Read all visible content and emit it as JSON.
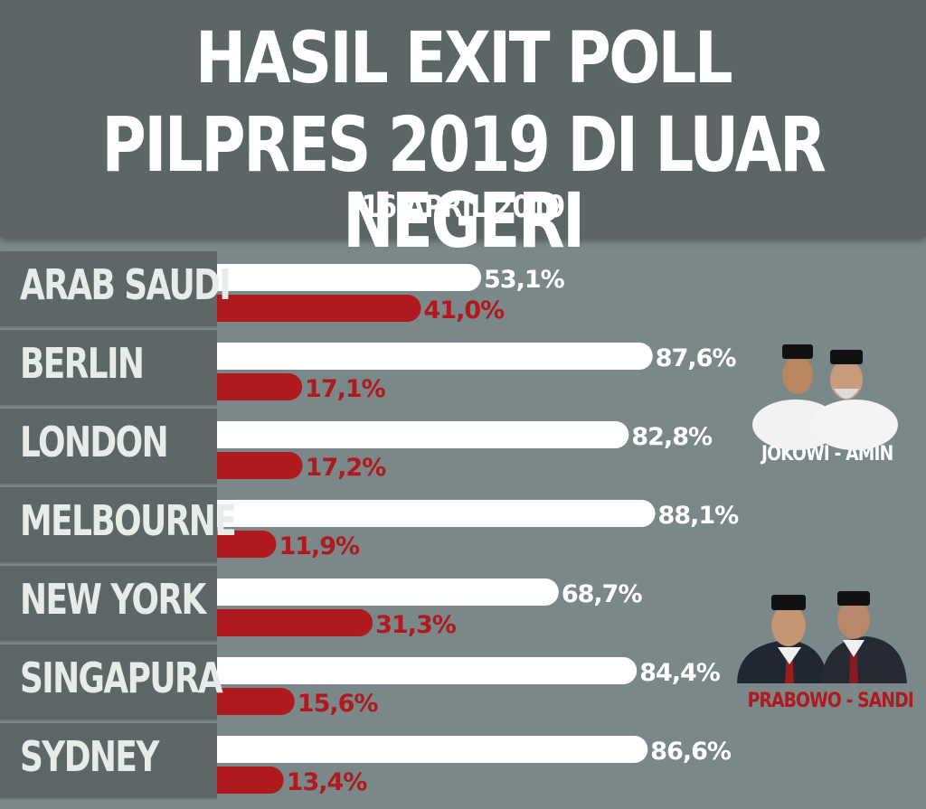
{
  "header": {
    "title_line1": "HASIL EXIT POLL",
    "title_line2": "PILPRES 2019 DI LUAR NEGERI",
    "date": "16 APRIL 2019"
  },
  "chart_data": {
    "type": "bar",
    "orientation": "horizontal",
    "title": "HASIL EXIT POLL PILPRES 2019 DI LUAR NEGERI",
    "subtitle": "16 APRIL 2019",
    "categories": [
      "ARAB SAUDI",
      "BERLIN",
      "LONDON",
      "MELBOURNE",
      "NEW YORK",
      "SINGAPURA",
      "SYDNEY"
    ],
    "series": [
      {
        "name": "JOKOWI - AMIN",
        "color": "#ffffff",
        "values": [
          53.1,
          87.6,
          82.8,
          88.1,
          68.7,
          84.4,
          86.6
        ],
        "labels": [
          "53,1%",
          "87,6%",
          "82,8%",
          "88,1%",
          "68,7%",
          "84,4%",
          "86,6%"
        ]
      },
      {
        "name": "PRABOWO - SANDI",
        "color": "#b0191e",
        "values": [
          41.0,
          17.1,
          17.2,
          11.9,
          31.3,
          15.6,
          13.4
        ],
        "labels": [
          "41,0%",
          "17,1%",
          "17,2%",
          "11,9%",
          "31,3%",
          "15,6%",
          "13,4%"
        ]
      }
    ],
    "xlim": [
      0,
      100
    ],
    "grid": false
  },
  "legend": {
    "candidate1": "JOKOWI - AMIN",
    "candidate2": "PRABOWO - SANDI",
    "candidate1_color": "#ffffff",
    "candidate2_color": "#b0191e"
  }
}
